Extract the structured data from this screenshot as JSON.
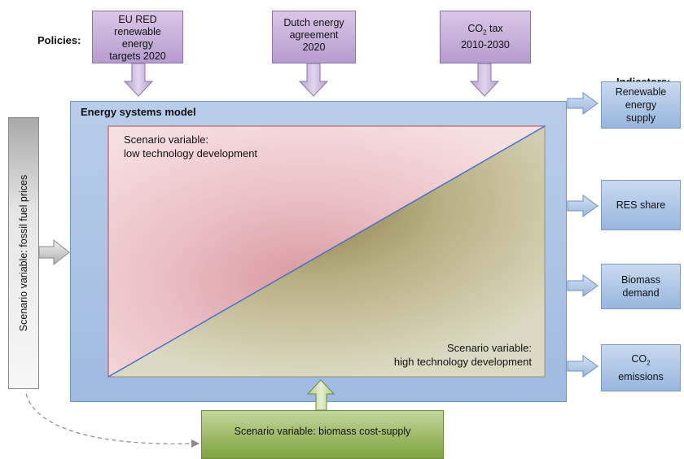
{
  "policies_label": "Policies:",
  "indicators_label": "Indicators:",
  "policies": [
    {
      "lines": [
        "EU RED",
        "renewable",
        "energy",
        "targets 2020"
      ]
    },
    {
      "lines": [
        "Dutch energy",
        "agreement",
        "2020"
      ]
    },
    {
      "line1_main": "CO",
      "line1_sub": "2",
      "line1_rest": " tax",
      "line2": "2010-2030"
    }
  ],
  "model": {
    "title": "Energy systems model",
    "low_tech": [
      "Scenario variable:",
      "low technology development"
    ],
    "high_tech": [
      "Scenario variable:",
      "high technology development"
    ]
  },
  "fossil_fuel": "Scenario variable: fossil fuel prices",
  "biomass_cost": "Scenario variable: biomass cost-supply",
  "indicators": [
    {
      "lines": [
        "Renewable",
        "energy",
        "supply"
      ]
    },
    {
      "lines": [
        "RES share"
      ]
    },
    {
      "lines": [
        "Biomass",
        "demand"
      ]
    },
    {
      "line1_main": "CO",
      "line1_sub": "2",
      "line2": "emissions"
    }
  ],
  "colors": {
    "policy_fill": "#c8b2db",
    "indicator_fill": "#a9c3e6",
    "model_fill": "#aec6e7",
    "low_tech_fill": "#e9b7bc",
    "high_tech_fill": "#c3bf96",
    "biomass_fill": "#9dbb62",
    "fossil_fill": "#d9d9d9"
  }
}
